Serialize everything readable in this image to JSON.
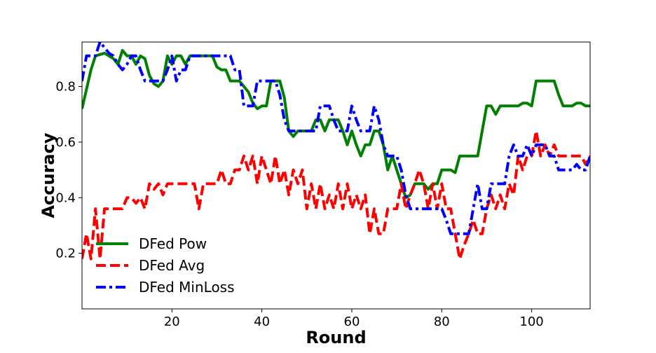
{
  "chart_data": {
    "type": "line",
    "title": "",
    "xlabel": "Round",
    "ylabel": "Accuracy",
    "xlim": [
      0,
      113
    ],
    "ylim": [
      0,
      0.96
    ],
    "xticks": [
      20,
      40,
      60,
      80,
      100
    ],
    "yticks": [
      0.2,
      0.4,
      0.6,
      0.8
    ],
    "grid": false,
    "legend_position": "lower-left",
    "series": [
      {
        "name": "DFed Pow",
        "color": "#008000",
        "style": "solid",
        "points": [
          [
            0,
            0.72
          ],
          [
            2,
            0.86
          ],
          [
            3,
            0.91
          ],
          [
            5,
            0.92
          ],
          [
            7,
            0.9
          ],
          [
            8,
            0.88
          ],
          [
            9,
            0.93
          ],
          [
            10,
            0.91
          ],
          [
            11,
            0.91
          ],
          [
            12,
            0.88
          ],
          [
            13,
            0.91
          ],
          [
            14,
            0.9
          ],
          [
            15,
            0.84
          ],
          [
            16,
            0.81
          ],
          [
            17,
            0.8
          ],
          [
            18,
            0.82
          ],
          [
            19,
            0.91
          ],
          [
            20,
            0.88
          ],
          [
            21,
            0.91
          ],
          [
            22,
            0.91
          ],
          [
            23,
            0.88
          ],
          [
            24,
            0.91
          ],
          [
            26,
            0.91
          ],
          [
            28,
            0.91
          ],
          [
            29,
            0.91
          ],
          [
            30,
            0.87
          ],
          [
            31,
            0.86
          ],
          [
            32,
            0.86
          ],
          [
            33,
            0.82
          ],
          [
            35,
            0.82
          ],
          [
            36,
            0.8
          ],
          [
            37,
            0.78
          ],
          [
            38,
            0.74
          ],
          [
            39,
            0.72
          ],
          [
            40,
            0.73
          ],
          [
            41,
            0.73
          ],
          [
            42,
            0.82
          ],
          [
            44,
            0.82
          ],
          [
            45,
            0.76
          ],
          [
            46,
            0.64
          ],
          [
            47,
            0.62
          ],
          [
            48,
            0.64
          ],
          [
            51,
            0.64
          ],
          [
            52,
            0.68
          ],
          [
            53,
            0.68
          ],
          [
            54,
            0.64
          ],
          [
            55,
            0.68
          ],
          [
            57,
            0.68
          ],
          [
            58,
            0.64
          ],
          [
            59,
            0.59
          ],
          [
            60,
            0.64
          ],
          [
            61,
            0.59
          ],
          [
            62,
            0.55
          ],
          [
            63,
            0.59
          ],
          [
            64,
            0.59
          ],
          [
            65,
            0.64
          ],
          [
            66,
            0.64
          ],
          [
            67,
            0.59
          ],
          [
            68,
            0.5
          ],
          [
            69,
            0.55
          ],
          [
            70,
            0.5
          ],
          [
            71,
            0.45
          ],
          [
            72,
            0.4
          ],
          [
            73,
            0.41
          ],
          [
            74,
            0.45
          ],
          [
            75,
            0.45
          ],
          [
            76,
            0.45
          ],
          [
            77,
            0.43
          ],
          [
            78,
            0.45
          ],
          [
            79,
            0.45
          ],
          [
            80,
            0.5
          ],
          [
            82,
            0.5
          ],
          [
            83,
            0.49
          ],
          [
            84,
            0.55
          ],
          [
            88,
            0.55
          ],
          [
            89,
            0.64
          ],
          [
            90,
            0.73
          ],
          [
            91,
            0.73
          ],
          [
            92,
            0.7
          ],
          [
            93,
            0.73
          ],
          [
            97,
            0.73
          ],
          [
            98,
            0.74
          ],
          [
            99,
            0.74
          ],
          [
            100,
            0.73
          ],
          [
            101,
            0.82
          ],
          [
            103,
            0.82
          ],
          [
            105,
            0.82
          ],
          [
            106,
            0.77
          ],
          [
            107,
            0.73
          ],
          [
            109,
            0.73
          ],
          [
            110,
            0.74
          ],
          [
            111,
            0.74
          ],
          [
            112,
            0.73
          ],
          [
            113,
            0.73
          ]
        ]
      },
      {
        "name": "DFed Avg",
        "color": "#ff0000",
        "style": "dashed",
        "points": [
          [
            0,
            0.18
          ],
          [
            1,
            0.27
          ],
          [
            2,
            0.18
          ],
          [
            3,
            0.36
          ],
          [
            4,
            0.18
          ],
          [
            5,
            0.36
          ],
          [
            9,
            0.36
          ],
          [
            10,
            0.4
          ],
          [
            11,
            0.4
          ],
          [
            12,
            0.38
          ],
          [
            13,
            0.4
          ],
          [
            14,
            0.36
          ],
          [
            15,
            0.45
          ],
          [
            16,
            0.43
          ],
          [
            17,
            0.45
          ],
          [
            18,
            0.41
          ],
          [
            19,
            0.45
          ],
          [
            24,
            0.45
          ],
          [
            25,
            0.45
          ],
          [
            26,
            0.36
          ],
          [
            27,
            0.45
          ],
          [
            28,
            0.45
          ],
          [
            30,
            0.45
          ],
          [
            31,
            0.5
          ],
          [
            32,
            0.45
          ],
          [
            33,
            0.45
          ],
          [
            34,
            0.5
          ],
          [
            35,
            0.5
          ],
          [
            36,
            0.55
          ],
          [
            37,
            0.5
          ],
          [
            38,
            0.55
          ],
          [
            39,
            0.45
          ],
          [
            40,
            0.55
          ],
          [
            41,
            0.5
          ],
          [
            42,
            0.45
          ],
          [
            43,
            0.55
          ],
          [
            44,
            0.45
          ],
          [
            45,
            0.5
          ],
          [
            46,
            0.41
          ],
          [
            47,
            0.5
          ],
          [
            48,
            0.45
          ],
          [
            49,
            0.5
          ],
          [
            50,
            0.36
          ],
          [
            51,
            0.45
          ],
          [
            52,
            0.36
          ],
          [
            53,
            0.45
          ],
          [
            54,
            0.36
          ],
          [
            55,
            0.41
          ],
          [
            56,
            0.36
          ],
          [
            57,
            0.45
          ],
          [
            58,
            0.36
          ],
          [
            59,
            0.45
          ],
          [
            60,
            0.36
          ],
          [
            61,
            0.41
          ],
          [
            62,
            0.36
          ],
          [
            63,
            0.41
          ],
          [
            64,
            0.27
          ],
          [
            65,
            0.36
          ],
          [
            66,
            0.27
          ],
          [
            67,
            0.27
          ],
          [
            68,
            0.36
          ],
          [
            70,
            0.36
          ],
          [
            71,
            0.45
          ],
          [
            72,
            0.36
          ],
          [
            73,
            0.41
          ],
          [
            74,
            0.45
          ],
          [
            75,
            0.5
          ],
          [
            76,
            0.45
          ],
          [
            77,
            0.36
          ],
          [
            78,
            0.45
          ],
          [
            79,
            0.36
          ],
          [
            80,
            0.45
          ],
          [
            81,
            0.36
          ],
          [
            82,
            0.36
          ],
          [
            83,
            0.27
          ],
          [
            84,
            0.18
          ],
          [
            85,
            0.23
          ],
          [
            86,
            0.27
          ],
          [
            87,
            0.32
          ],
          [
            88,
            0.27
          ],
          [
            89,
            0.27
          ],
          [
            90,
            0.36
          ],
          [
            91,
            0.41
          ],
          [
            92,
            0.36
          ],
          [
            93,
            0.41
          ],
          [
            94,
            0.36
          ],
          [
            95,
            0.45
          ],
          [
            96,
            0.41
          ],
          [
            97,
            0.55
          ],
          [
            98,
            0.5
          ],
          [
            99,
            0.55
          ],
          [
            100,
            0.55
          ],
          [
            101,
            0.64
          ],
          [
            102,
            0.55
          ],
          [
            103,
            0.59
          ],
          [
            104,
            0.55
          ],
          [
            105,
            0.59
          ],
          [
            106,
            0.55
          ],
          [
            107,
            0.55
          ],
          [
            108,
            0.55
          ],
          [
            109,
            0.55
          ],
          [
            110,
            0.55
          ],
          [
            111,
            0.55
          ],
          [
            112,
            0.52
          ],
          [
            113,
            0.55
          ]
        ]
      },
      {
        "name": "DFed MinLoss",
        "color": "#0000ff",
        "style": "dashdot",
        "points": [
          [
            0,
            0.82
          ],
          [
            1,
            0.91
          ],
          [
            3,
            0.91
          ],
          [
            4,
            0.96
          ],
          [
            6,
            0.92
          ],
          [
            7,
            0.91
          ],
          [
            8,
            0.88
          ],
          [
            9,
            0.86
          ],
          [
            10,
            0.88
          ],
          [
            11,
            0.91
          ],
          [
            12,
            0.91
          ],
          [
            13,
            0.86
          ],
          [
            14,
            0.82
          ],
          [
            15,
            0.82
          ],
          [
            18,
            0.82
          ],
          [
            19,
            0.86
          ],
          [
            20,
            0.91
          ],
          [
            21,
            0.82
          ],
          [
            22,
            0.86
          ],
          [
            23,
            0.86
          ],
          [
            24,
            0.91
          ],
          [
            25,
            0.91
          ],
          [
            32,
            0.91
          ],
          [
            33,
            0.91
          ],
          [
            34,
            0.86
          ],
          [
            35,
            0.86
          ],
          [
            36,
            0.73
          ],
          [
            37,
            0.73
          ],
          [
            38,
            0.73
          ],
          [
            39,
            0.82
          ],
          [
            43,
            0.82
          ],
          [
            44,
            0.77
          ],
          [
            45,
            0.68
          ],
          [
            46,
            0.64
          ],
          [
            48,
            0.64
          ],
          [
            51,
            0.64
          ],
          [
            52,
            0.64
          ],
          [
            53,
            0.73
          ],
          [
            55,
            0.73
          ],
          [
            56,
            0.68
          ],
          [
            57,
            0.64
          ],
          [
            59,
            0.64
          ],
          [
            60,
            0.73
          ],
          [
            61,
            0.68
          ],
          [
            62,
            0.64
          ],
          [
            64,
            0.64
          ],
          [
            65,
            0.73
          ],
          [
            66,
            0.68
          ],
          [
            67,
            0.59
          ],
          [
            68,
            0.55
          ],
          [
            70,
            0.55
          ],
          [
            71,
            0.5
          ],
          [
            72,
            0.41
          ],
          [
            73,
            0.36
          ],
          [
            78,
            0.36
          ],
          [
            79,
            0.36
          ],
          [
            80,
            0.36
          ],
          [
            81,
            0.32
          ],
          [
            82,
            0.27
          ],
          [
            84,
            0.27
          ],
          [
            86,
            0.27
          ],
          [
            87,
            0.36
          ],
          [
            88,
            0.45
          ],
          [
            89,
            0.36
          ],
          [
            90,
            0.36
          ],
          [
            91,
            0.45
          ],
          [
            94,
            0.45
          ],
          [
            95,
            0.55
          ],
          [
            96,
            0.59
          ],
          [
            97,
            0.55
          ],
          [
            98,
            0.55
          ],
          [
            99,
            0.59
          ],
          [
            100,
            0.55
          ],
          [
            101,
            0.59
          ],
          [
            103,
            0.59
          ],
          [
            104,
            0.55
          ],
          [
            105,
            0.55
          ],
          [
            106,
            0.5
          ],
          [
            107,
            0.5
          ],
          [
            108,
            0.5
          ],
          [
            109,
            0.5
          ],
          [
            110,
            0.52
          ],
          [
            111,
            0.5
          ],
          [
            112,
            0.5
          ],
          [
            113,
            0.55
          ]
        ]
      }
    ]
  }
}
